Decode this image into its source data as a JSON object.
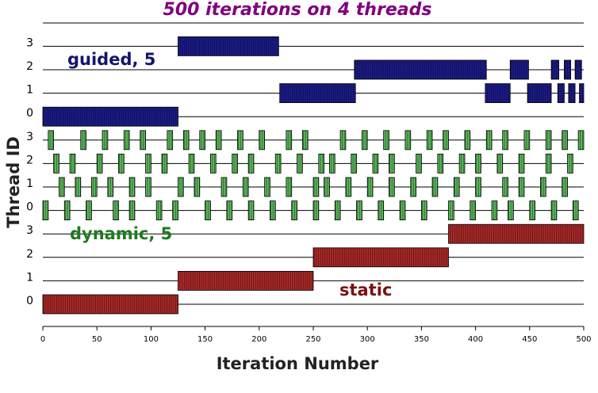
{
  "chart_data": {
    "type": "gantt",
    "title": "500 iterations on 4 threads",
    "x_label": "Iteration Number",
    "y_label": "Thread ID",
    "xlim": [
      0,
      500
    ],
    "xticks": [
      0,
      50,
      100,
      150,
      200,
      250,
      300,
      350,
      400,
      450,
      500
    ],
    "threads": [
      0,
      1,
      2,
      3
    ],
    "groups": [
      {
        "name": "static",
        "color": "#b02a2a",
        "label_color": "#7a1010",
        "rows": [
          [
            [
              0,
              125
            ]
          ],
          [
            [
              125,
              250
            ]
          ],
          [
            [
              250,
              375
            ]
          ],
          [
            [
              375,
              500
            ]
          ]
        ]
      },
      {
        "name": "dynamic, 5",
        "color": "#5cbf5c",
        "label_color": "#1e7a1e",
        "rows": [
          [
            [
              0,
              5
            ],
            [
              20,
              25
            ],
            [
              40,
              45
            ],
            [
              65,
              70
            ],
            [
              80,
              85
            ],
            [
              105,
              110
            ],
            [
              120,
              125
            ],
            [
              150,
              155
            ],
            [
              170,
              175
            ],
            [
              190,
              195
            ],
            [
              210,
              215
            ],
            [
              230,
              235
            ],
            [
              250,
              255
            ],
            [
              270,
              275
            ],
            [
              290,
              295
            ],
            [
              310,
              315
            ],
            [
              330,
              335
            ],
            [
              350,
              355
            ],
            [
              375,
              380
            ],
            [
              395,
              400
            ],
            [
              415,
              420
            ],
            [
              430,
              435
            ],
            [
              450,
              455
            ],
            [
              470,
              475
            ],
            [
              490,
              495
            ]
          ],
          [
            [
              15,
              20
            ],
            [
              30,
              35
            ],
            [
              45,
              50
            ],
            [
              60,
              65
            ],
            [
              80,
              85
            ],
            [
              95,
              100
            ],
            [
              125,
              130
            ],
            [
              140,
              145
            ],
            [
              165,
              170
            ],
            [
              185,
              190
            ],
            [
              205,
              210
            ],
            [
              225,
              230
            ],
            [
              250,
              255
            ],
            [
              260,
              265
            ],
            [
              280,
              285
            ],
            [
              300,
              305
            ],
            [
              320,
              325
            ],
            [
              340,
              345
            ],
            [
              360,
              365
            ],
            [
              380,
              385
            ],
            [
              400,
              405
            ],
            [
              425,
              430
            ],
            [
              440,
              445
            ],
            [
              460,
              465
            ],
            [
              480,
              485
            ]
          ],
          [
            [
              10,
              15
            ],
            [
              25,
              30
            ],
            [
              50,
              55
            ],
            [
              70,
              75
            ],
            [
              95,
              100
            ],
            [
              110,
              115
            ],
            [
              135,
              140
            ],
            [
              155,
              160
            ],
            [
              175,
              180
            ],
            [
              190,
              195
            ],
            [
              215,
              220
            ],
            [
              235,
              240
            ],
            [
              255,
              260
            ],
            [
              265,
              270
            ],
            [
              285,
              290
            ],
            [
              305,
              310
            ],
            [
              320,
              325
            ],
            [
              345,
              350
            ],
            [
              365,
              370
            ],
            [
              385,
              390
            ],
            [
              400,
              405
            ],
            [
              420,
              425
            ],
            [
              440,
              445
            ],
            [
              465,
              470
            ],
            [
              485,
              490
            ]
          ],
          [
            [
              5,
              10
            ],
            [
              35,
              40
            ],
            [
              55,
              60
            ],
            [
              75,
              80
            ],
            [
              90,
              95
            ],
            [
              115,
              120
            ],
            [
              130,
              135
            ],
            [
              145,
              150
            ],
            [
              160,
              165
            ],
            [
              180,
              185
            ],
            [
              200,
              205
            ],
            [
              225,
              230
            ],
            [
              240,
              245
            ],
            [
              275,
              280
            ],
            [
              295,
              300
            ],
            [
              315,
              320
            ],
            [
              335,
              340
            ],
            [
              355,
              360
            ],
            [
              370,
              375
            ],
            [
              390,
              395
            ],
            [
              410,
              415
            ],
            [
              425,
              430
            ],
            [
              445,
              450
            ],
            [
              465,
              470
            ],
            [
              480,
              485
            ],
            [
              495,
              500
            ]
          ]
        ]
      },
      {
        "name": "guided, 5",
        "color": "#1c1c8c",
        "label_color": "#14146e",
        "rows": [
          [
            [
              0,
              125
            ]
          ],
          [
            [
              219,
              289
            ],
            [
              409,
              432
            ],
            [
              448,
              470
            ],
            [
              476,
              482
            ],
            [
              486,
              492
            ],
            [
              496,
              500
            ]
          ],
          [
            [
              288,
              410
            ],
            [
              432,
              449
            ],
            [
              470,
              477
            ],
            [
              482,
              488
            ],
            [
              492,
              498
            ]
          ],
          [
            [
              125,
              218
            ]
          ]
        ]
      }
    ]
  }
}
